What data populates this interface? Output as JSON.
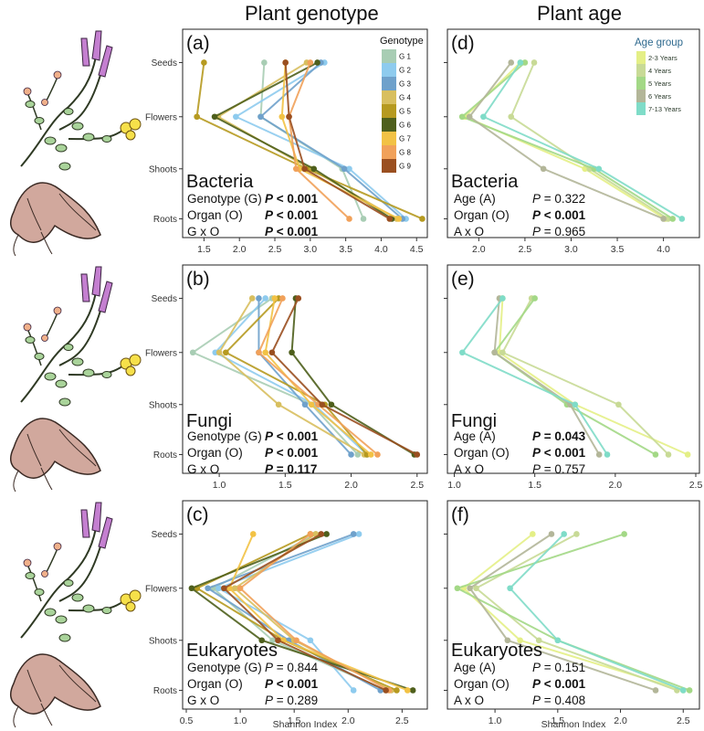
{
  "headers": {
    "left": "Plant genotype",
    "right": "Plant age"
  },
  "colors": {
    "genotype": [
      "#a8cdb4",
      "#8ecbee",
      "#6fa1cb",
      "#d8bf5f",
      "#b69a20",
      "#4e5f1c",
      "#f2c245",
      "#f1a15a",
      "#9a4f20"
    ],
    "age": [
      "#e4ef86",
      "#c8da96",
      "#a3d886",
      "#b3b699",
      "#7fdcc8"
    ]
  },
  "chart_data": [
    {
      "panel": "a",
      "type": "line",
      "title": "Bacteria",
      "categories": [
        "Seeds",
        "Flowers",
        "Shoots",
        "Roots"
      ],
      "xlim": [
        1.25,
        4.6
      ],
      "xticks": [
        1.5,
        2.0,
        2.5,
        3.0,
        3.5,
        4.0,
        4.5
      ],
      "legend_title": "Genotype",
      "series": [
        {
          "name": "G 1",
          "values": [
            2.35,
            2.3,
            3.45,
            3.75
          ]
        },
        {
          "name": "G 2",
          "values": [
            3.2,
            1.95,
            3.55,
            4.35
          ]
        },
        {
          "name": "G 3",
          "values": [
            3.15,
            2.3,
            3.48,
            4.3
          ]
        },
        {
          "name": "G 4",
          "values": [
            2.95,
            1.7,
            3.0,
            4.22
          ]
        },
        {
          "name": "G 5",
          "values": [
            1.5,
            1.4,
            2.95,
            4.58
          ]
        },
        {
          "name": "G 6",
          "values": [
            3.1,
            1.65,
            3.05,
            4.15
          ]
        },
        {
          "name": "G 7",
          "values": [
            2.65,
            2.6,
            2.85,
            4.25
          ]
        },
        {
          "name": "G 8",
          "values": [
            3.0,
            2.7,
            2.8,
            3.55
          ]
        },
        {
          "name": "G 9",
          "values": [
            2.65,
            2.7,
            2.92,
            4.12
          ]
        }
      ],
      "stats": [
        {
          "label": "Genotype (G)",
          "p": "P < 0.001",
          "bold": true
        },
        {
          "label": "Organ (O)",
          "p": "P < 0.001",
          "bold": true
        },
        {
          "label": "G x O",
          "p": "P < 0.001",
          "bold": true
        }
      ]
    },
    {
      "panel": "d",
      "type": "line",
      "title": "Bacteria",
      "categories": [
        "Seeds",
        "Flowers",
        "Shoots",
        "Roots"
      ],
      "xlim": [
        1.7,
        4.35
      ],
      "xticks": [
        2.0,
        2.5,
        3.0,
        3.5,
        4.0
      ],
      "legend_title": "Age group",
      "series": [
        {
          "name": "2-3 Years",
          "values": [
            2.45,
            1.85,
            3.15,
            4.02
          ]
        },
        {
          "name": "4 Years",
          "values": [
            2.6,
            2.35,
            3.2,
            4.05
          ]
        },
        {
          "name": "5 Years",
          "values": [
            2.5,
            1.82,
            3.25,
            4.1
          ]
        },
        {
          "name": "6 Years",
          "values": [
            2.35,
            1.9,
            2.7,
            4.0
          ]
        },
        {
          "name": "7-13 Years",
          "values": [
            2.45,
            2.05,
            3.3,
            4.2
          ]
        }
      ],
      "stats": [
        {
          "label": "Age (A)",
          "p": "P = 0.322",
          "bold": false
        },
        {
          "label": "Organ (O)",
          "p": "P < 0.001",
          "bold": true
        },
        {
          "label": "A x O",
          "p": "P = 0.965",
          "bold": false
        }
      ]
    },
    {
      "panel": "b",
      "type": "line",
      "title": "Fungi",
      "categories": [
        "Seeds",
        "Flowers",
        "Shoots",
        "Roots"
      ],
      "xlim": [
        0.75,
        2.55
      ],
      "xticks": [
        1.0,
        1.5,
        2.0,
        2.5
      ],
      "series": [
        {
          "name": "G 1",
          "values": [
            1.4,
            0.8,
            1.7,
            2.05
          ]
        },
        {
          "name": "G 2",
          "values": [
            1.35,
            0.97,
            1.72,
            2.12
          ]
        },
        {
          "name": "G 3",
          "values": [
            1.3,
            1.3,
            1.65,
            2.0
          ]
        },
        {
          "name": "G 4",
          "values": [
            1.25,
            1.0,
            1.45,
            2.1
          ]
        },
        {
          "name": "G 5",
          "values": [
            1.45,
            1.05,
            1.8,
            2.12
          ]
        },
        {
          "name": "G 6",
          "values": [
            1.58,
            1.55,
            1.85,
            2.48
          ]
        },
        {
          "name": "G 7",
          "values": [
            1.42,
            1.35,
            1.7,
            2.15
          ]
        },
        {
          "name": "G 8",
          "values": [
            1.48,
            1.3,
            1.75,
            2.2
          ]
        },
        {
          "name": "G 9",
          "values": [
            1.6,
            1.4,
            1.78,
            2.5
          ]
        }
      ],
      "stats": [
        {
          "label": "Genotype (G)",
          "p": "P < 0.001",
          "bold": true
        },
        {
          "label": "Organ (O)",
          "p": "P < 0.001",
          "bold": true
        },
        {
          "label": "G x O",
          "p": "P = 0.117",
          "bold": true
        }
      ]
    },
    {
      "panel": "e",
      "type": "line",
      "title": "Fungi",
      "categories": [
        "Seeds",
        "Flowers",
        "Shoots",
        "Roots"
      ],
      "xlim": [
        0.98,
        2.5
      ],
      "xticks": [
        1.0,
        1.5,
        2.0,
        2.5
      ],
      "series": [
        {
          "name": "2-3 Years",
          "values": [
            1.3,
            1.28,
            1.75,
            2.45
          ]
        },
        {
          "name": "4 Years",
          "values": [
            1.48,
            1.3,
            2.02,
            2.33
          ]
        },
        {
          "name": "5 Years",
          "values": [
            1.5,
            1.25,
            1.7,
            2.25
          ]
        },
        {
          "name": "6 Years",
          "values": [
            1.28,
            1.25,
            1.72,
            1.9
          ]
        },
        {
          "name": "7-13 Years",
          "values": [
            1.3,
            1.05,
            1.75,
            1.95
          ]
        }
      ],
      "stats": [
        {
          "label": "Age (A)",
          "p": "P = 0.043",
          "bold": true
        },
        {
          "label": "Organ (O)",
          "p": "P < 0.001",
          "bold": true
        },
        {
          "label": "A x O",
          "p": "P = 0.757",
          "bold": false
        }
      ]
    },
    {
      "panel": "c",
      "type": "line",
      "title": "Eukaryotes",
      "categories": [
        "Seeds",
        "Flowers",
        "Shoots",
        "Roots"
      ],
      "xlim": [
        0.5,
        2.7
      ],
      "xticks": [
        0.5,
        1.0,
        1.5,
        2.0,
        2.5
      ],
      "series": [
        {
          "name": "G 1",
          "values": [
            1.7,
            0.75,
            1.3,
            2.35
          ]
        },
        {
          "name": "G 2",
          "values": [
            2.1,
            0.8,
            1.65,
            2.05
          ]
        },
        {
          "name": "G 3",
          "values": [
            2.05,
            0.7,
            1.45,
            2.3
          ]
        },
        {
          "name": "G 4",
          "values": [
            1.7,
            0.95,
            1.5,
            2.4
          ]
        },
        {
          "name": "G 5",
          "values": [
            1.65,
            0.6,
            1.4,
            2.45
          ]
        },
        {
          "name": "G 6",
          "values": [
            1.8,
            0.55,
            1.2,
            2.6
          ]
        },
        {
          "name": "G 7",
          "values": [
            1.12,
            0.9,
            1.4,
            2.55
          ]
        },
        {
          "name": "G 8",
          "values": [
            1.65,
            1.0,
            1.52,
            2.38
          ]
        },
        {
          "name": "G 9",
          "values": [
            1.75,
            0.85,
            1.35,
            2.35
          ]
        }
      ],
      "stats": [
        {
          "label": "Genotype (G)",
          "p": "P = 0.844",
          "bold": false
        },
        {
          "label": "Organ (O)",
          "p": "P < 0.001",
          "bold": true
        },
        {
          "label": "G x O",
          "p": "P = 0.289",
          "bold": false
        }
      ]
    },
    {
      "panel": "f",
      "type": "line",
      "title": "Eukaryotes",
      "categories": [
        "Seeds",
        "Flowers",
        "Shoots",
        "Roots"
      ],
      "xlim": [
        0.65,
        2.6
      ],
      "xticks": [
        1.0,
        1.5,
        2.0,
        2.5
      ],
      "series": [
        {
          "name": "2-3 Years",
          "values": [
            1.3,
            0.75,
            1.2,
            2.5
          ]
        },
        {
          "name": "4 Years",
          "values": [
            1.65,
            0.85,
            1.35,
            2.45
          ]
        },
        {
          "name": "5 Years",
          "values": [
            2.03,
            0.7,
            1.5,
            2.55
          ]
        },
        {
          "name": "6 Years",
          "values": [
            1.45,
            0.8,
            1.1,
            2.28
          ]
        },
        {
          "name": "7-13 Years",
          "values": [
            1.55,
            1.12,
            1.5,
            2.5
          ]
        }
      ],
      "stats": [
        {
          "label": "Age (A)",
          "p": "P = 0.151",
          "bold": false
        },
        {
          "label": "Organ (O)",
          "p": "P < 0.001",
          "bold": true
        },
        {
          "label": "A x O",
          "p": "P = 0.408",
          "bold": false
        }
      ]
    }
  ],
  "xaxis_label": "Shannon Index"
}
